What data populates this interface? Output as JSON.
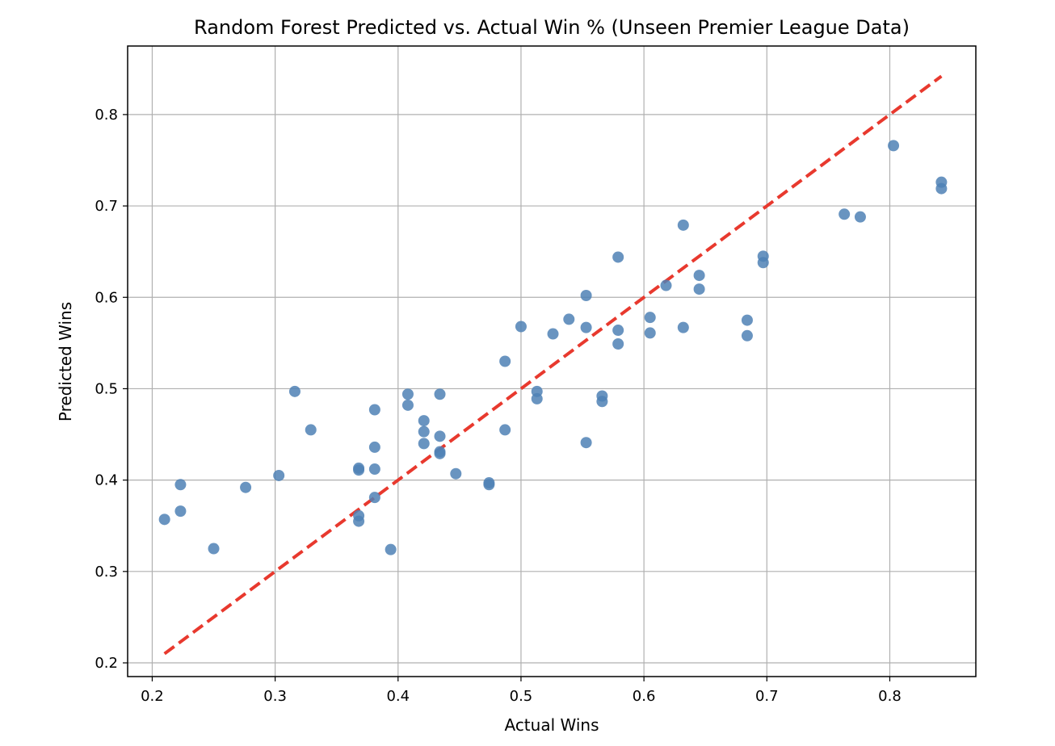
{
  "chart_data": {
    "type": "scatter",
    "title": "Random Forest Predicted vs. Actual Win % (Unseen Premier League Data)",
    "xlabel": "Actual Wins",
    "ylabel": "Predicted Wins",
    "xlim": [
      0.18,
      0.87
    ],
    "ylim": [
      0.185,
      0.875
    ],
    "xticks": [
      0.2,
      0.3,
      0.4,
      0.5,
      0.6,
      0.7,
      0.8
    ],
    "xtick_labels": [
      "0.2",
      "0.3",
      "0.4",
      "0.5",
      "0.6",
      "0.7",
      "0.8"
    ],
    "yticks": [
      0.2,
      0.3,
      0.4,
      0.5,
      0.6,
      0.7,
      0.8
    ],
    "ytick_labels": [
      "0.2",
      "0.3",
      "0.4",
      "0.5",
      "0.6",
      "0.7",
      "0.8"
    ],
    "grid": true,
    "point_color": "#4f81b5",
    "reference_line": {
      "x": [
        0.21,
        0.842
      ],
      "y": [
        0.21,
        0.842
      ],
      "color": "#e8392e",
      "style": "dashed"
    },
    "points": [
      [
        0.21,
        0.357
      ],
      [
        0.223,
        0.395
      ],
      [
        0.223,
        0.366
      ],
      [
        0.25,
        0.325
      ],
      [
        0.276,
        0.392
      ],
      [
        0.303,
        0.405
      ],
      [
        0.316,
        0.497
      ],
      [
        0.329,
        0.455
      ],
      [
        0.368,
        0.413
      ],
      [
        0.368,
        0.411
      ],
      [
        0.368,
        0.361
      ],
      [
        0.368,
        0.355
      ],
      [
        0.381,
        0.477
      ],
      [
        0.381,
        0.436
      ],
      [
        0.381,
        0.412
      ],
      [
        0.381,
        0.381
      ],
      [
        0.394,
        0.324
      ],
      [
        0.408,
        0.494
      ],
      [
        0.408,
        0.482
      ],
      [
        0.421,
        0.465
      ],
      [
        0.421,
        0.453
      ],
      [
        0.421,
        0.44
      ],
      [
        0.434,
        0.494
      ],
      [
        0.434,
        0.448
      ],
      [
        0.434,
        0.431
      ],
      [
        0.434,
        0.429
      ],
      [
        0.447,
        0.407
      ],
      [
        0.474,
        0.397
      ],
      [
        0.474,
        0.395
      ],
      [
        0.487,
        0.53
      ],
      [
        0.487,
        0.455
      ],
      [
        0.5,
        0.568
      ],
      [
        0.513,
        0.497
      ],
      [
        0.513,
        0.489
      ],
      [
        0.526,
        0.56
      ],
      [
        0.539,
        0.576
      ],
      [
        0.553,
        0.602
      ],
      [
        0.553,
        0.567
      ],
      [
        0.553,
        0.441
      ],
      [
        0.566,
        0.492
      ],
      [
        0.566,
        0.486
      ],
      [
        0.579,
        0.644
      ],
      [
        0.579,
        0.564
      ],
      [
        0.579,
        0.549
      ],
      [
        0.618,
        0.613
      ],
      [
        0.605,
        0.578
      ],
      [
        0.605,
        0.561
      ],
      [
        0.632,
        0.679
      ],
      [
        0.632,
        0.567
      ],
      [
        0.645,
        0.624
      ],
      [
        0.645,
        0.609
      ],
      [
        0.684,
        0.575
      ],
      [
        0.684,
        0.558
      ],
      [
        0.697,
        0.645
      ],
      [
        0.697,
        0.638
      ],
      [
        0.763,
        0.691
      ],
      [
        0.776,
        0.688
      ],
      [
        0.803,
        0.766
      ],
      [
        0.842,
        0.726
      ],
      [
        0.842,
        0.719
      ]
    ]
  }
}
